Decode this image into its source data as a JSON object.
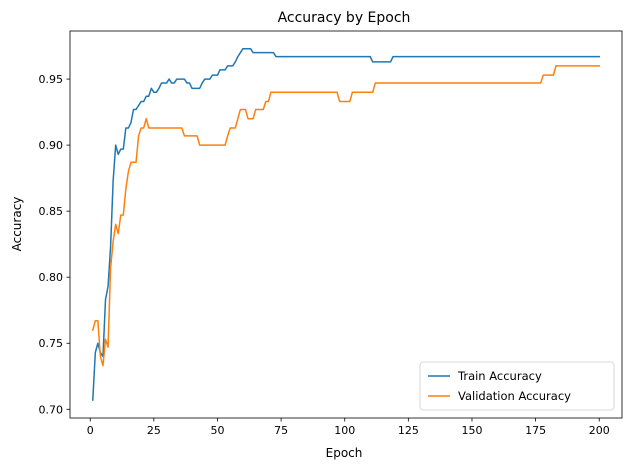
{
  "chart_data": {
    "type": "line",
    "title": "Accuracy by Epoch",
    "xlabel": "Epoch",
    "ylabel": "Accuracy",
    "xlim": [
      -7.95,
      208.95
    ],
    "ylim": [
      0.6934,
      0.9864
    ],
    "xticks": [
      0,
      25,
      50,
      75,
      100,
      125,
      150,
      175,
      200
    ],
    "yticks": [
      0.7,
      0.75,
      0.8,
      0.85,
      0.9,
      0.95
    ],
    "ytick_labels": [
      "0.70",
      "0.75",
      "0.80",
      "0.85",
      "0.90",
      "0.95"
    ],
    "grid": false,
    "legend_position": "lower-right",
    "series": [
      {
        "name": "Train Accuracy",
        "color": "#1f77b4",
        "points": [
          [
            1,
            0.707
          ],
          [
            2,
            0.743
          ],
          [
            3,
            0.75
          ],
          [
            4,
            0.743
          ],
          [
            5,
            0.74
          ],
          [
            6,
            0.783
          ],
          [
            7,
            0.793
          ],
          [
            8,
            0.823
          ],
          [
            9,
            0.873
          ],
          [
            10,
            0.9
          ],
          [
            11,
            0.893
          ],
          [
            12,
            0.897
          ],
          [
            13,
            0.897
          ],
          [
            14,
            0.913
          ],
          [
            15,
            0.913
          ],
          [
            16,
            0.917
          ],
          [
            17,
            0.927
          ],
          [
            18,
            0.927
          ],
          [
            19,
            0.93
          ],
          [
            20,
            0.933
          ],
          [
            21,
            0.933
          ],
          [
            22,
            0.937
          ],
          [
            23,
            0.937
          ],
          [
            24,
            0.943
          ],
          [
            25,
            0.94
          ],
          [
            26,
            0.94
          ],
          [
            27,
            0.943
          ],
          [
            28,
            0.947
          ],
          [
            29,
            0.947
          ],
          [
            30,
            0.947
          ],
          [
            31,
            0.95
          ],
          [
            32,
            0.947
          ],
          [
            33,
            0.947
          ],
          [
            34,
            0.95
          ],
          [
            35,
            0.95
          ],
          [
            36,
            0.95
          ],
          [
            37,
            0.95
          ],
          [
            38,
            0.947
          ],
          [
            39,
            0.947
          ],
          [
            40,
            0.943
          ],
          [
            41,
            0.943
          ],
          [
            42,
            0.943
          ],
          [
            43,
            0.943
          ],
          [
            44,
            0.947
          ],
          [
            45,
            0.95
          ],
          [
            46,
            0.95
          ],
          [
            47,
            0.95
          ],
          [
            48,
            0.953
          ],
          [
            49,
            0.953
          ],
          [
            50,
            0.953
          ],
          [
            51,
            0.957
          ],
          [
            52,
            0.957
          ],
          [
            53,
            0.957
          ],
          [
            54,
            0.96
          ],
          [
            55,
            0.96
          ],
          [
            56,
            0.96
          ],
          [
            57,
            0.963
          ],
          [
            58,
            0.967
          ],
          [
            59,
            0.97
          ],
          [
            60,
            0.973
          ],
          [
            61,
            0.973
          ],
          [
            62,
            0.973
          ],
          [
            63,
            0.973
          ],
          [
            64,
            0.97
          ],
          [
            65,
            0.97
          ],
          [
            66,
            0.97
          ],
          [
            67,
            0.97
          ],
          [
            68,
            0.97
          ],
          [
            69,
            0.97
          ],
          [
            70,
            0.97
          ],
          [
            71,
            0.97
          ],
          [
            72,
            0.97
          ],
          [
            73,
            0.967
          ],
          [
            74,
            0.967
          ],
          [
            110,
            0.967
          ],
          [
            111,
            0.963
          ],
          [
            112,
            0.963
          ],
          [
            118,
            0.963
          ],
          [
            119,
            0.967
          ],
          [
            120,
            0.967
          ],
          [
            200,
            0.967
          ]
        ]
      },
      {
        "name": "Validation Accuracy",
        "color": "#ff7f0e",
        "points": [
          [
            1,
            0.76
          ],
          [
            2,
            0.767
          ],
          [
            3,
            0.767
          ],
          [
            4,
            0.74
          ],
          [
            5,
            0.733
          ],
          [
            6,
            0.753
          ],
          [
            7,
            0.747
          ],
          [
            8,
            0.807
          ],
          [
            9,
            0.827
          ],
          [
            10,
            0.84
          ],
          [
            11,
            0.833
          ],
          [
            12,
            0.847
          ],
          [
            13,
            0.847
          ],
          [
            14,
            0.867
          ],
          [
            15,
            0.88
          ],
          [
            16,
            0.887
          ],
          [
            17,
            0.887
          ],
          [
            18,
            0.887
          ],
          [
            19,
            0.907
          ],
          [
            20,
            0.913
          ],
          [
            21,
            0.913
          ],
          [
            22,
            0.92
          ],
          [
            23,
            0.913
          ],
          [
            24,
            0.913
          ],
          [
            36,
            0.913
          ],
          [
            37,
            0.907
          ],
          [
            38,
            0.907
          ],
          [
            42,
            0.907
          ],
          [
            43,
            0.9
          ],
          [
            44,
            0.9
          ],
          [
            53,
            0.9
          ],
          [
            54,
            0.907
          ],
          [
            55,
            0.913
          ],
          [
            56,
            0.913
          ],
          [
            57,
            0.913
          ],
          [
            58,
            0.92
          ],
          [
            59,
            0.927
          ],
          [
            60,
            0.927
          ],
          [
            61,
            0.927
          ],
          [
            62,
            0.92
          ],
          [
            63,
            0.92
          ],
          [
            64,
            0.92
          ],
          [
            65,
            0.927
          ],
          [
            66,
            0.927
          ],
          [
            67,
            0.927
          ],
          [
            68,
            0.927
          ],
          [
            69,
            0.933
          ],
          [
            70,
            0.933
          ],
          [
            71,
            0.94
          ],
          [
            72,
            0.94
          ],
          [
            97,
            0.94
          ],
          [
            98,
            0.933
          ],
          [
            99,
            0.933
          ],
          [
            102,
            0.933
          ],
          [
            103,
            0.94
          ],
          [
            104,
            0.94
          ],
          [
            110,
            0.94
          ],
          [
            111,
            0.94
          ],
          [
            112,
            0.947
          ],
          [
            113,
            0.947
          ],
          [
            177,
            0.947
          ],
          [
            178,
            0.953
          ],
          [
            179,
            0.953
          ],
          [
            182,
            0.953
          ],
          [
            183,
            0.96
          ],
          [
            184,
            0.96
          ],
          [
            200,
            0.96
          ]
        ]
      }
    ]
  }
}
